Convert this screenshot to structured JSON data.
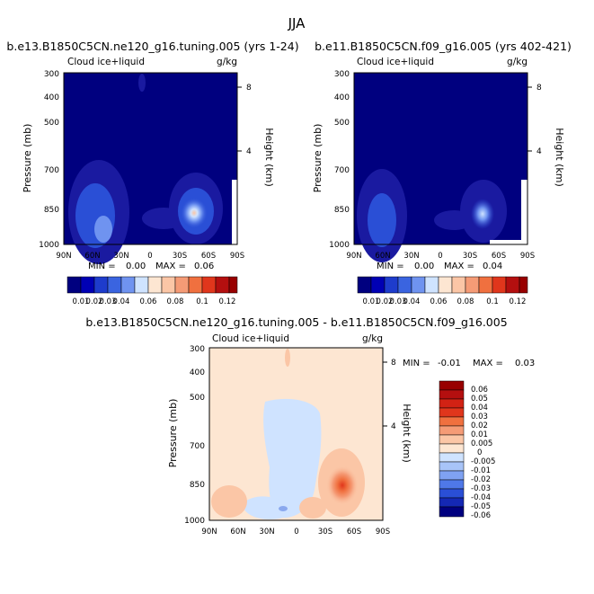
{
  "page": {
    "title": "JJA"
  },
  "colors": {
    "deep_navy": "#00007f",
    "navy": "#1a1aa0",
    "blue": "#2a4fd6",
    "light_blue": "#6f93f0",
    "pale_blue": "#cfe3ff",
    "cream": "#fde6d2",
    "peach": "#fbc6a6",
    "orange": "#f59b76",
    "red_orange": "#f0703f",
    "red": "#e0361c",
    "dark_red": "#980000"
  },
  "chart_data": [
    {
      "type": "heatmap",
      "name": "panel-1",
      "title": "b.e13.B1850C5CN.ne120_g16.tuning.005 (yrs 1-24)",
      "variable": "Cloud ice+liquid",
      "units": "g/kg",
      "xlabel": "",
      "ylabel": "Pressure (mb)",
      "y2label": "Height (km)",
      "x_ticks": [
        "90N",
        "60N",
        "30N",
        "0",
        "30S",
        "60S",
        "90S"
      ],
      "y_ticks": [
        300,
        400,
        500,
        700,
        850,
        1000
      ],
      "y2_ticks": [
        8,
        4
      ],
      "min_label": "MIN =",
      "min_value": "0.00",
      "max_label": "MAX =",
      "max_value": "0.06",
      "colorbar": {
        "orientation": "horizontal",
        "tick_labels": [
          "0.01",
          "0.02",
          "0.03",
          "0.04",
          "0.06",
          "0.08",
          "0.1",
          "0.12"
        ]
      }
    },
    {
      "type": "heatmap",
      "name": "panel-2",
      "title": "b.e11.B1850C5CN.f09_g16.005 (yrs 402-421)",
      "variable": "Cloud ice+liquid",
      "units": "g/kg",
      "xlabel": "",
      "ylabel": "Pressure (mb)",
      "y2label": "Height (km)",
      "x_ticks": [
        "90N",
        "60N",
        "30N",
        "0",
        "30S",
        "60S",
        "90S"
      ],
      "y_ticks": [
        300,
        400,
        500,
        700,
        850,
        1000
      ],
      "y2_ticks": [
        8,
        4
      ],
      "min_label": "MIN =",
      "min_value": "0.00",
      "max_label": "MAX =",
      "max_value": "0.04",
      "colorbar": {
        "orientation": "horizontal",
        "tick_labels": [
          "0.01",
          "0.02",
          "0.03",
          "0.04",
          "0.06",
          "0.08",
          "0.1",
          "0.12"
        ]
      }
    },
    {
      "type": "heatmap",
      "name": "panel-diff",
      "title": "b.e13.B1850C5CN.ne120_g16.tuning.005 - b.e11.B1850C5CN.f09_g16.005",
      "variable": "Cloud ice+liquid",
      "units": "g/kg",
      "xlabel": "",
      "ylabel": "Pressure (mb)",
      "y2label": "Height (km)",
      "x_ticks": [
        "90N",
        "60N",
        "30N",
        "0",
        "30S",
        "60S",
        "90S"
      ],
      "y_ticks": [
        300,
        400,
        500,
        700,
        850,
        1000
      ],
      "y2_ticks": [
        8,
        4
      ],
      "min_label": "MIN =",
      "min_value": "-0.01",
      "max_label": "MAX =",
      "max_value": "0.03",
      "colorbar": {
        "orientation": "vertical",
        "tick_labels": [
          "0.06",
          "0.05",
          "0.04",
          "0.03",
          "0.02",
          "0.01",
          "0.005",
          "0",
          "-0.005",
          "-0.01",
          "-0.02",
          "-0.03",
          "-0.04",
          "-0.05",
          "-0.06"
        ]
      }
    }
  ]
}
